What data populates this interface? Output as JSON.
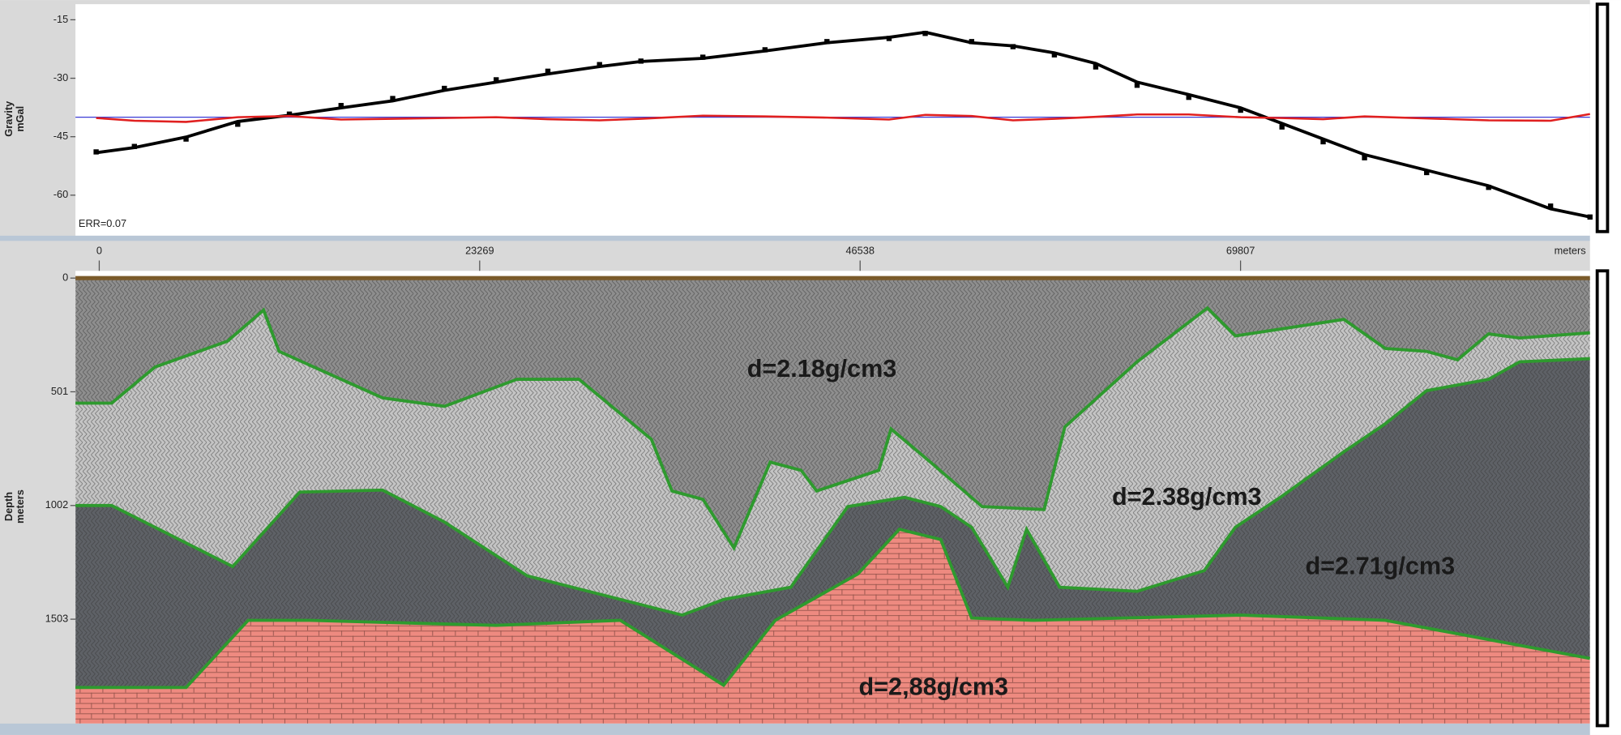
{
  "chart_data": [
    {
      "type": "line",
      "annotation": "ERR=0.07",
      "ylabel": [
        "Gravity",
        "mGal"
      ],
      "xlim": [
        -1454,
        91180
      ],
      "ylim": [
        -70.4,
        -11
      ],
      "yticks": [
        -15,
        -30,
        -45,
        -60
      ],
      "reference_line": {
        "value": -40,
        "color": "#3b3bd6"
      },
      "x": [
        -190,
        2150,
        5310,
        8470,
        11630,
        14790,
        17950,
        21110,
        24280,
        27440,
        30600,
        33130,
        36920,
        40720,
        44510,
        48310,
        50520,
        53360,
        55890,
        58420,
        60950,
        63480,
        66640,
        69810,
        72340,
        74860,
        77390,
        81190,
        84980,
        88770,
        91180
      ],
      "series": [
        {
          "style": "markers",
          "color": "#000000",
          "values": [
            -48.9,
            -47.5,
            -45.6,
            -41.8,
            -39.2,
            -37.0,
            -35.2,
            -32.6,
            -30.4,
            -28.2,
            -26.5,
            -25.6,
            -24.6,
            -22.7,
            -20.6,
            -19.8,
            -18.5,
            -20.6,
            -21.9,
            -24.0,
            -27.1,
            -31.8,
            -34.9,
            -38.2,
            -42.5,
            -46.3,
            -50.4,
            -54.2,
            -58.0,
            -62.8,
            -65.6
          ]
        },
        {
          "style": "line",
          "color": "#000000",
          "values": [
            -49.1,
            -47.8,
            -45.1,
            -41.1,
            -39.5,
            -37.6,
            -35.8,
            -33.1,
            -31.0,
            -28.9,
            -27.0,
            -25.7,
            -24.9,
            -23.0,
            -20.9,
            -19.5,
            -18.2,
            -20.9,
            -21.7,
            -23.5,
            -26.2,
            -31.0,
            -34.2,
            -37.6,
            -41.6,
            -45.6,
            -49.6,
            -53.6,
            -57.6,
            -63.5,
            -65.6
          ]
        },
        {
          "style": "line",
          "color": "#e02020",
          "values": [
            -40.2,
            -40.9,
            -41.2,
            -40.0,
            -39.7,
            -40.6,
            -40.4,
            -40.2,
            -40.0,
            -40.5,
            -40.8,
            -40.4,
            -39.6,
            -39.8,
            -40.1,
            -40.6,
            -39.4,
            -39.7,
            -40.8,
            -40.4,
            -39.9,
            -39.3,
            -39.3,
            -40.0,
            -40.2,
            -40.5,
            -39.8,
            -40.3,
            -40.8,
            -40.9,
            -39.2
          ]
        }
      ]
    },
    {
      "type": "section",
      "ylabel": [
        "Depth",
        "meters"
      ],
      "xlabel": "meters",
      "xlim": [
        -1454,
        91180
      ],
      "ylim": [
        0,
        1963
      ],
      "xticks": [
        0,
        23269,
        46538,
        69807
      ],
      "yticks": [
        0,
        501,
        1002,
        1503
      ],
      "boundary_color": "#2e9a2e",
      "boundaries": [
        {
          "x": [
            -1454,
            760,
            3410,
            7840,
            10050,
            11000,
            17330,
            21120,
            25550,
            29340,
            33770,
            35030,
            36930,
            38820,
            41040,
            42930,
            43880,
            47680,
            48430,
            50840,
            54000,
            57790,
            59060,
            63480,
            67780,
            69490,
            76130,
            78660,
            81190,
            83080,
            84980,
            86880,
            91180
          ],
          "depth": [
            551,
            551,
            392,
            278,
            141,
            323,
            528,
            565,
            446,
            446,
            710,
            938,
            975,
            1189,
            811,
            847,
            938,
            847,
            665,
            811,
            1007,
            1020,
            656,
            369,
            132,
            255,
            182,
            310,
            323,
            360,
            246,
            264,
            241
          ]
        },
        {
          "x": [
            -1454,
            760,
            3410,
            8160,
            12270,
            17330,
            21120,
            26180,
            35660,
            38190,
            42300,
            45780,
            49260,
            51470,
            53360,
            55570,
            56720,
            58740,
            63480,
            67590,
            69490,
            72340,
            76130,
            78660,
            81190,
            84980,
            86880,
            91180
          ],
          "depth": [
            1002,
            1002,
            1098,
            1271,
            943,
            934,
            1075,
            1312,
            1485,
            1416,
            1362,
            1007,
            966,
            1007,
            1098,
            1362,
            1107,
            1362,
            1380,
            1289,
            1098,
            961,
            765,
            642,
            496,
            446,
            369,
            355
          ]
        },
        {
          "x": [
            -1454,
            5310,
            9110,
            12900,
            17330,
            24280,
            31870,
            38190,
            41350,
            46410,
            48940,
            51470,
            53360,
            57160,
            69810,
            78660,
            91180
          ],
          "depth": [
            1804,
            1804,
            1508,
            1508,
            1517,
            1530,
            1508,
            1794,
            1508,
            1303,
            1107,
            1152,
            1498,
            1508,
            1485,
            1508,
            1676
          ]
        }
      ],
      "layers": [
        {
          "label": "d=2.18g/cm3",
          "color": "#8e8e8e"
        },
        {
          "label": "d=2.38g/cm3",
          "color": "#c4c4c4"
        },
        {
          "label": "d=2.71g/cm3",
          "color": "#5e6166"
        },
        {
          "label": "d=2,88g/cm3",
          "color": "#ee8a80"
        }
      ]
    }
  ]
}
